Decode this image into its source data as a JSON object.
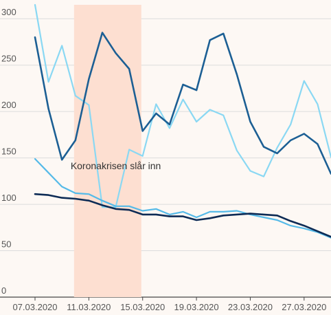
{
  "chart_data": {
    "type": "line",
    "title": "",
    "xlabel": "",
    "ylabel": "",
    "ylim": [
      0,
      315
    ],
    "yticks": [
      0,
      50,
      100,
      150,
      200,
      250,
      300
    ],
    "xlim": [
      "2020-03-07",
      "2020-03-29"
    ],
    "x": [
      "2020-03-07",
      "2020-03-08",
      "2020-03-09",
      "2020-03-10",
      "2020-03-11",
      "2020-03-12",
      "2020-03-13",
      "2020-03-14",
      "2020-03-15",
      "2020-03-16",
      "2020-03-17",
      "2020-03-18",
      "2020-03-19",
      "2020-03-20",
      "2020-03-21",
      "2020-03-22",
      "2020-03-23",
      "2020-03-24",
      "2020-03-25",
      "2020-03-26",
      "2020-03-27",
      "2020-03-28",
      "2020-03-29"
    ],
    "xtick_labels": [
      {
        "date": "2020-03-07",
        "label": "07.03.2020"
      },
      {
        "date": "2020-03-11",
        "label": "11.03.2020"
      },
      {
        "date": "2020-03-15",
        "label": "15.03.2020"
      },
      {
        "date": "2020-03-19",
        "label": "19.03.2020"
      },
      {
        "date": "2020-03-23",
        "label": "23.03.2020"
      },
      {
        "date": "2020-03-27",
        "label": "27.03.2020"
      }
    ],
    "series": [
      {
        "color": "#8ad8f3",
        "values": [
          315,
          232,
          271,
          217,
          207,
          97,
          97,
          159,
          152,
          208,
          182,
          213,
          189,
          202,
          196,
          158,
          136,
          130,
          161,
          186,
          233,
          208,
          151
        ]
      },
      {
        "color": "#1c5f94",
        "values": [
          280,
          203,
          148,
          169,
          235,
          285,
          263,
          246,
          179,
          198,
          186,
          229,
          223,
          277,
          284,
          240,
          189,
          162,
          155,
          169,
          176,
          165,
          133
        ]
      },
      {
        "color": "#55bae8",
        "values": [
          149,
          134,
          119,
          112,
          111,
          104,
          98,
          98,
          93,
          95,
          89,
          92,
          86,
          92,
          92,
          93,
          89,
          86,
          83,
          77,
          74,
          70,
          64
        ]
      },
      {
        "color": "#0d2b55",
        "values": [
          111,
          110,
          107,
          106,
          104,
          99,
          95,
          94,
          89,
          89,
          87,
          87,
          83,
          85,
          88,
          89,
          90,
          89,
          88,
          82,
          77,
          71,
          65
        ]
      }
    ],
    "annotations": [
      {
        "label": "Koronakrisen slår inn",
        "x_start": "2020-03-09.9",
        "x_end": "2020-03-14.9",
        "color": "#fddfd1"
      }
    ],
    "grid": true,
    "legend": "none"
  }
}
